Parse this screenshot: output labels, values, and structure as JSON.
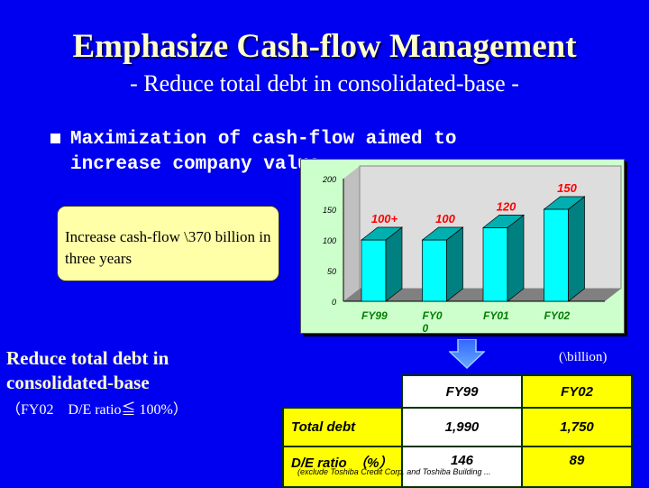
{
  "title": "Emphasize Cash-flow Management",
  "subtitle": "- Reduce total debt in consolidated-base -",
  "bullet": {
    "icon": "square-bullet-icon",
    "text": "Maximization of cash-flow aimed to increase company value"
  },
  "callout": "Increase cash-flow \\370 billion in three years",
  "reduce_heading": "Reduce total debt in consolidated-base",
  "de_note": "（FY02　D/E ratio≦ 100%）",
  "unit": "(\\billion)",
  "table": {
    "headers": [
      "FY99",
      "FY02"
    ],
    "rows": [
      {
        "label": "Total debt",
        "values": [
          "1,990",
          "1,750"
        ]
      },
      {
        "label": "D/E ratio　（%）",
        "values": [
          "146",
          "89"
        ]
      }
    ],
    "footnote": "(exclude Toshiba Credit Corp. and Toshiba Building ..."
  },
  "arrow_icon": "down-arrow-icon",
  "colors": {
    "background": "#0000f0",
    "bar": "#00ffff",
    "bar_side": "#008080",
    "data_label": "#ff0000",
    "category_label": "#008000",
    "highlight": "#ffff00"
  },
  "chart_data": {
    "type": "bar",
    "categories": [
      "FY99",
      "FY0 0",
      "FY01",
      "FY02"
    ],
    "values": [
      100,
      100,
      120,
      150
    ],
    "data_labels": [
      "100+",
      "100",
      "120",
      "150"
    ],
    "yticks": [
      "0",
      "50",
      "100",
      "150",
      "200"
    ],
    "ylim": [
      0,
      200
    ],
    "grid": false,
    "style": "3d"
  }
}
